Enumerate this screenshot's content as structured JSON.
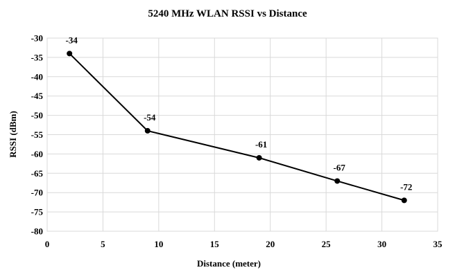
{
  "chart_data": {
    "type": "line",
    "title": "5240 MHz WLAN RSSI vs Distance",
    "xlabel": "Distance (meter)",
    "ylabel": "RSSI (dBm)",
    "xlim": [
      0,
      35
    ],
    "ylim": [
      -80,
      -30
    ],
    "x_ticks": [
      0,
      5,
      10,
      15,
      20,
      25,
      30,
      35
    ],
    "y_ticks": [
      -30,
      -35,
      -40,
      -45,
      -50,
      -55,
      -60,
      -65,
      -70,
      -75,
      -80
    ],
    "grid": true,
    "series": [
      {
        "x": [
          2,
          9,
          19,
          26,
          32
        ],
        "y": [
          -34,
          -54,
          -61,
          -67,
          -72
        ],
        "labels": [
          "-34",
          "-54",
          "-61",
          "-67",
          "-72"
        ],
        "color": "#000000"
      }
    ]
  }
}
